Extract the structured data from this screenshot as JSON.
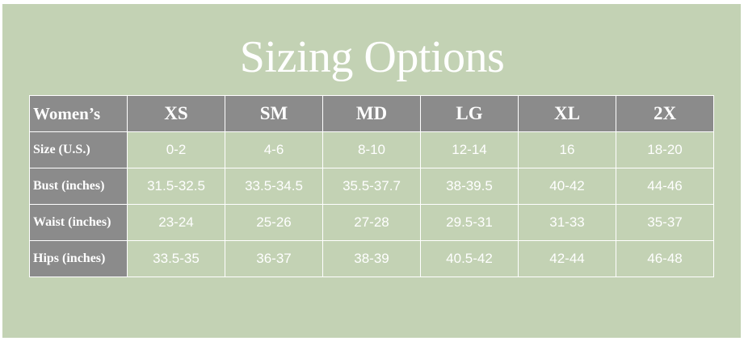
{
  "title": "Sizing Options",
  "table": {
    "corner_label": "Women’s",
    "columns": [
      "XS",
      "SM",
      "MD",
      "LG",
      "XL",
      "2X"
    ],
    "rows": [
      {
        "label": "Size (U.S.)",
        "values": [
          "0-2",
          "4-6",
          "8-10",
          "12-14",
          "16",
          "18-20"
        ]
      },
      {
        "label": "Bust (inches)",
        "values": [
          "31.5-32.5",
          "33.5-34.5",
          "35.5-37.7",
          "38-39.5",
          "40-42",
          "44-46"
        ]
      },
      {
        "label": "Waist (inches)",
        "values": [
          "23-24",
          "25-26",
          "27-28",
          "29.5-31",
          "31-33",
          "35-37"
        ]
      },
      {
        "label": "Hips (inches)",
        "values": [
          "33.5-35",
          "36-37",
          "38-39",
          "40.5-42",
          "42-44",
          "46-48"
        ]
      }
    ]
  },
  "colors": {
    "background": "#c3d2b4",
    "header_fill": "#8b8b8b",
    "text": "#ffffff"
  }
}
